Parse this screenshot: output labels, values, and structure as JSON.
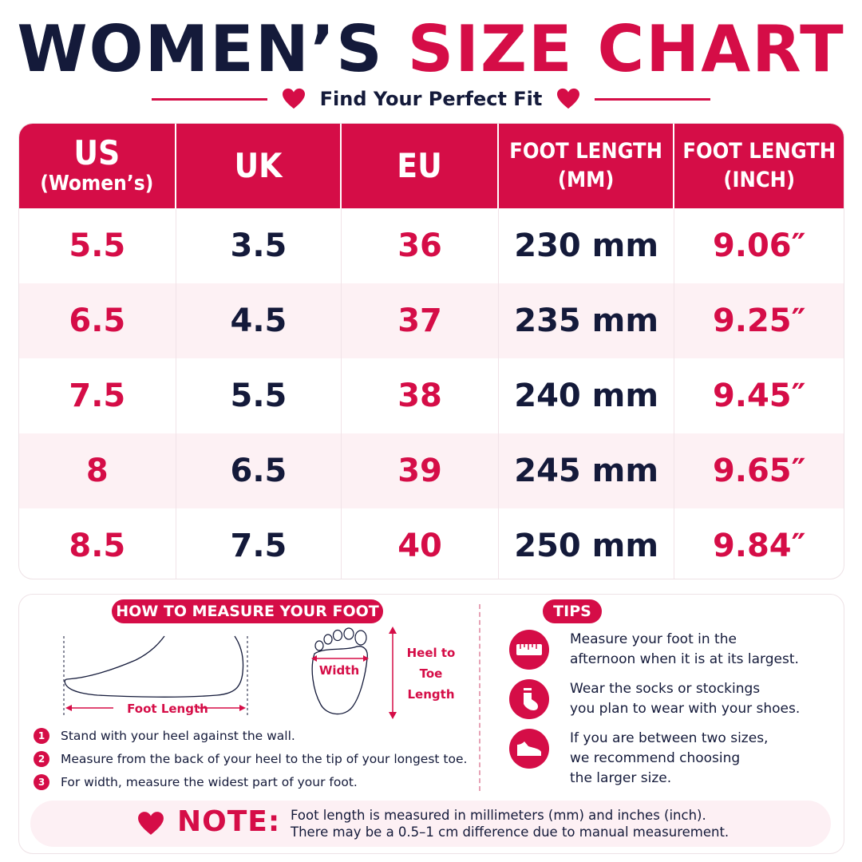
{
  "header": {
    "title_dark": "WOMEN’S",
    "title_red": "SIZE CHART",
    "subtitle": "Find Your Perfect Fit"
  },
  "colors": {
    "accent": "#d50d47",
    "dark": "#141a3a",
    "row_tint": "#fdf1f4",
    "note_bg": "#fdf0f4"
  },
  "table": {
    "columns": [
      {
        "line1": "US",
        "line2": "(Women’s)"
      },
      {
        "line1": "UK",
        "line2": ""
      },
      {
        "line1": "EU",
        "line2": ""
      },
      {
        "line1": "FOOT LENGTH",
        "line2": "(MM)"
      },
      {
        "line1": "FOOT LENGTH",
        "line2": "(INCH)"
      }
    ],
    "rows": [
      [
        "5.5",
        "3.5",
        "36",
        "230 mm",
        "9.06″"
      ],
      [
        "6.5",
        "4.5",
        "37",
        "235 mm",
        "9.25″"
      ],
      [
        "7.5",
        "5.5",
        "38",
        "240 mm",
        "9.45″"
      ],
      [
        "8",
        "6.5",
        "39",
        "245 mm",
        "9.65″"
      ],
      [
        "8.5",
        "7.5",
        "40",
        "250 mm",
        "9.84″"
      ]
    ]
  },
  "measure": {
    "heading": "HOW TO MEASURE YOUR FOOT",
    "foot_length_label": "Foot Length",
    "width_label": "Width",
    "heel_label": [
      "Heel to",
      "Toe",
      "Length"
    ],
    "steps": [
      {
        "num": "1",
        "text": "Stand with your heel against the wall."
      },
      {
        "num": "2",
        "text": "Measure from the back of your heel to the tip of your longest toe."
      },
      {
        "num": "3",
        "text": "For width, measure the widest part of your foot."
      }
    ]
  },
  "tips": {
    "heading": "TIPS",
    "items": [
      {
        "icon": "ruler-icon",
        "line1": "Measure your foot in the",
        "line2": "afternoon when it is at its largest.",
        "line3": ""
      },
      {
        "icon": "sock-icon",
        "line1": "Wear the socks or stockings",
        "line2": "you plan to wear with your shoes.",
        "line3": ""
      },
      {
        "icon": "shoe-icon",
        "line1": "If you are between two sizes,",
        "line2": "we recommend choosing",
        "line3": "the larger size."
      }
    ]
  },
  "note": {
    "label": "NOTE:",
    "line1": "Foot length is measured in millimeters (mm) and inches (inch).",
    "line2": "There may be a 0.5–1 cm difference due to manual measurement."
  }
}
